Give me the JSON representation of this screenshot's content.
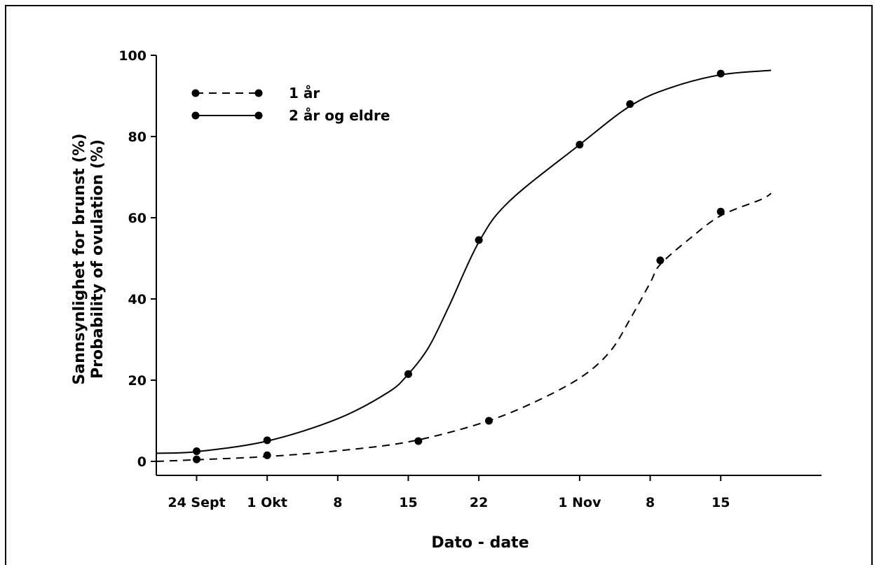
{
  "chart_data": {
    "type": "line",
    "title": "",
    "xlabel": "Dato - date",
    "ylabel_lines": [
      "Sannsynlighet for brunst (%)",
      "Probability of ovulation (%)"
    ],
    "x_ticks": [
      {
        "x": "2024-09-24",
        "label": "24 Sept"
      },
      {
        "x": "2024-10-01",
        "label": "1 Okt"
      },
      {
        "x": "2024-10-08",
        "label": "8"
      },
      {
        "x": "2024-10-15",
        "label": "15"
      },
      {
        "x": "2024-10-22",
        "label": "22"
      },
      {
        "x": "2024-11-01",
        "label": "1 Nov"
      },
      {
        "x": "2024-11-08",
        "label": "8"
      },
      {
        "x": "2024-11-15",
        "label": "15"
      }
    ],
    "y_ticks": [
      0,
      20,
      40,
      60,
      80,
      100
    ],
    "ylim": [
      0,
      100
    ],
    "xlim": [
      "2024-09-20",
      "2024-11-25"
    ],
    "grid": false,
    "legend_position": "top-left",
    "series": [
      {
        "name": "1 år",
        "style": "dashed",
        "color": "#000000",
        "points": [
          {
            "x": "2024-09-24",
            "y": 0.5
          },
          {
            "x": "2024-10-01",
            "y": 1.5
          },
          {
            "x": "2024-10-16",
            "y": 5
          },
          {
            "x": "2024-10-23",
            "y": 10
          },
          {
            "x": "2024-11-09",
            "y": 49.5
          },
          {
            "x": "2024-11-15",
            "y": 61.5
          }
        ],
        "curve": [
          {
            "x": "2024-09-20",
            "y": 0
          },
          {
            "x": "2024-09-24",
            "y": 0.4
          },
          {
            "x": "2024-10-01",
            "y": 1.2
          },
          {
            "x": "2024-10-08",
            "y": 2.6
          },
          {
            "x": "2024-10-15",
            "y": 4.8
          },
          {
            "x": "2024-10-22",
            "y": 9.2
          },
          {
            "x": "2024-10-27",
            "y": 14
          },
          {
            "x": "2024-11-01",
            "y": 20.5
          },
          {
            "x": "2024-11-04",
            "y": 27
          },
          {
            "x": "2024-11-06",
            "y": 35
          },
          {
            "x": "2024-11-08",
            "y": 44
          },
          {
            "x": "2024-11-09",
            "y": 48.5
          },
          {
            "x": "2024-11-12",
            "y": 55
          },
          {
            "x": "2024-11-15",
            "y": 60.5
          },
          {
            "x": "2024-11-19",
            "y": 64.5
          },
          {
            "x": "2024-11-20",
            "y": 66
          }
        ]
      },
      {
        "name": "2 år og eldre",
        "style": "solid",
        "color": "#000000",
        "points": [
          {
            "x": "2024-09-24",
            "y": 2.5
          },
          {
            "x": "2024-10-01",
            "y": 5.2
          },
          {
            "x": "2024-10-15",
            "y": 21.5
          },
          {
            "x": "2024-10-22",
            "y": 54.5
          },
          {
            "x": "2024-11-01",
            "y": 78
          },
          {
            "x": "2024-11-06",
            "y": 88
          },
          {
            "x": "2024-11-15",
            "y": 95.5
          }
        ],
        "curve": [
          {
            "x": "2024-09-20",
            "y": 2
          },
          {
            "x": "2024-09-24",
            "y": 2.4
          },
          {
            "x": "2024-10-01",
            "y": 5
          },
          {
            "x": "2024-10-08",
            "y": 10.5
          },
          {
            "x": "2024-10-13",
            "y": 17
          },
          {
            "x": "2024-10-15",
            "y": 21.5
          },
          {
            "x": "2024-10-17",
            "y": 28
          },
          {
            "x": "2024-10-19",
            "y": 38
          },
          {
            "x": "2024-10-22",
            "y": 54
          },
          {
            "x": "2024-10-25",
            "y": 64
          },
          {
            "x": "2024-11-01",
            "y": 78
          },
          {
            "x": "2024-11-06",
            "y": 87.5
          },
          {
            "x": "2024-11-10",
            "y": 92
          },
          {
            "x": "2024-11-15",
            "y": 95.2
          },
          {
            "x": "2024-11-20",
            "y": 96.3
          }
        ]
      }
    ]
  }
}
